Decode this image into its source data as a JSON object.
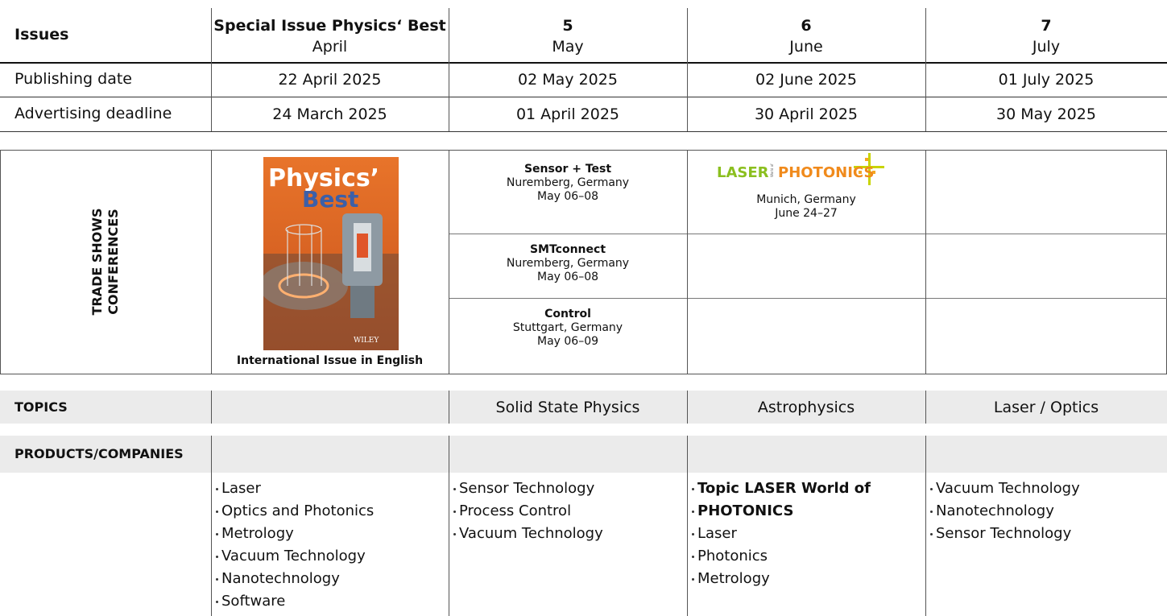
{
  "schedule": {
    "header_label": "Issues",
    "issues": [
      {
        "number": "Special Issue Physics‘ Best",
        "month": "April"
      },
      {
        "number": "5",
        "month": "May"
      },
      {
        "number": "6",
        "month": "June"
      },
      {
        "number": "7",
        "month": "July"
      }
    ],
    "rows": [
      {
        "label": "Publishing date",
        "cells": [
          "22 April 2025",
          "02 May 2025",
          "02 June 2025",
          "01 July 2025"
        ]
      },
      {
        "label": "Advertising deadline",
        "cells": [
          "24 March 2025",
          "01 April 2025",
          "30 April 2025",
          "30 May 2025"
        ]
      }
    ]
  },
  "trade_shows": {
    "label": [
      "TRADE SHOWS",
      "CONFERENCES"
    ],
    "special_issue": {
      "cover_title": [
        "Physics’",
        "Best"
      ],
      "cover_publisher": "WILEY",
      "caption": "International Issue in English"
    },
    "may": [
      {
        "name": "Sensor + Test",
        "place": "Nuremberg, Germany",
        "dates": "May 06–08"
      },
      {
        "name": "SMTconnect",
        "place": "Nuremberg, Germany",
        "dates": "May 06–08"
      },
      {
        "name": "Control",
        "place": "Stuttgart, Germany",
        "dates": "May 06–09"
      }
    ],
    "june": {
      "logo": {
        "left": "LASER",
        "small": "World of",
        "right": "PHOTONICS"
      },
      "place": "Munich, Germany",
      "dates": "June 24–27"
    }
  },
  "topics": {
    "label": "TOPICS",
    "by_issue": [
      null,
      "Solid State Physics",
      "Astrophysics",
      "Laser / Optics"
    ]
  },
  "products": {
    "label": "PRODUCTS/COMPANIES",
    "by_issue": [
      [
        {
          "text": "Laser"
        },
        {
          "text": "Optics and Photonics"
        },
        {
          "text": "Metrology"
        },
        {
          "text": "Vacuum Technology"
        },
        {
          "text": "Nanotechnology"
        },
        {
          "text": "Software"
        }
      ],
      [
        {
          "text": "Sensor Technology"
        },
        {
          "text": "Process Control"
        },
        {
          "text": "Vacuum Technology"
        }
      ],
      [
        {
          "text": "Topic LASER World of",
          "bold": true
        },
        {
          "text": "PHOTONICS",
          "bold": true
        },
        {
          "text": "Laser"
        },
        {
          "text": "Photonics"
        },
        {
          "text": "Metrology"
        }
      ],
      [
        {
          "text": "Vacuum Technology"
        },
        {
          "text": "Nanotechnology"
        },
        {
          "text": "Sensor Technology"
        }
      ]
    ]
  }
}
